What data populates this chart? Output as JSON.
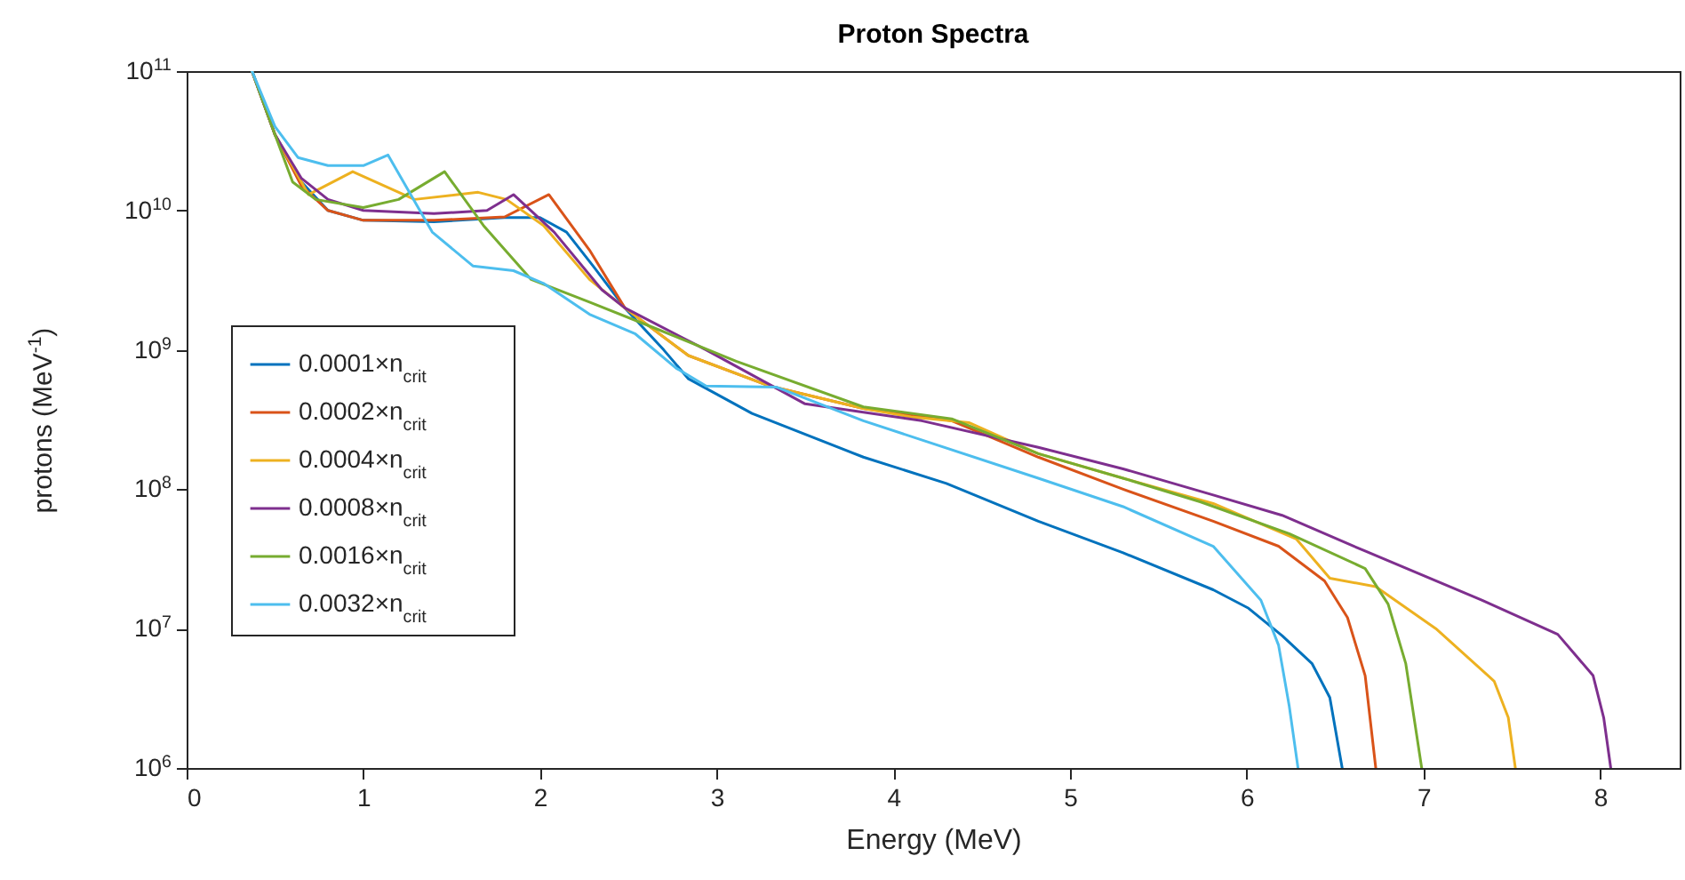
{
  "chart_data": {
    "type": "line",
    "title": "Proton Spectra",
    "xlabel": "Energy (MeV)",
    "ylabel": "protons (MeV$^{-1}$)",
    "log": "y",
    "grid": false,
    "legend": "left",
    "line_style": "solid",
    "xlim": [
      0,
      8.45
    ],
    "xticks": [
      0,
      1,
      2,
      3,
      4,
      5,
      6,
      7,
      8
    ],
    "ylim": [
      1000000.0,
      100000000000.0
    ],
    "yticks": [
      {
        "value": 1000000.0,
        "label": "10$^{6}$"
      },
      {
        "value": 10000000.0,
        "label": "10$^{7}$"
      },
      {
        "value": 100000000.0,
        "label": "10$^{8}$"
      },
      {
        "value": 1000000000.0,
        "label": "10$^{9}$"
      },
      {
        "value": 10000000000.0,
        "label": "10$^{10}$"
      },
      {
        "value": 100000000000.0,
        "label": "10$^{11}$"
      }
    ],
    "series": [
      {
        "name": "0.0001×n$_{crit}$",
        "color": "#0072bd",
        "x": [
          0.37,
          0.5,
          0.65,
          0.8,
          1.0,
          1.4,
          1.8,
          2.0,
          2.15,
          2.3,
          2.48,
          2.7,
          2.84,
          3.2,
          3.83,
          4.3,
          4.82,
          5.3,
          5.81,
          6.01,
          6.2,
          6.37,
          6.47,
          6.54
        ],
        "values": [
          100000000000.0,
          35000000000.0,
          16000000000.0,
          10000000000.0,
          8500000000.0,
          8300000000.0,
          8900000000.0,
          8900000000.0,
          7000000000.0,
          4000000000.0,
          2000000000.0,
          1000000000.0,
          620000000.0,
          350000000.0,
          170000000.0,
          110000000.0,
          59000000.0,
          35000000.0,
          19000000.0,
          14000000.0,
          8900000.0,
          5600000.0,
          3200000.0,
          1000000.0
        ]
      },
      {
        "name": "0.0002×n$_{crit}$",
        "color": "#d95319",
        "x": [
          0.37,
          0.5,
          0.65,
          0.8,
          1.0,
          1.4,
          1.8,
          2.05,
          2.28,
          2.48,
          2.84,
          3.3,
          3.83,
          4.33,
          4.82,
          5.3,
          5.81,
          6.18,
          6.44,
          6.57,
          6.67,
          6.73
        ],
        "values": [
          100000000000.0,
          35000000000.0,
          15000000000.0,
          10000000000.0,
          8500000000.0,
          8500000000.0,
          9000000000.0,
          13000000000.0,
          5200000000.0,
          2000000000.0,
          910000000.0,
          550000000.0,
          380000000.0,
          310000000.0,
          170000000.0,
          100000000.0,
          59000000.0,
          39000000.0,
          22000000.0,
          12000000.0,
          4600000.0,
          1000000.0
        ]
      },
      {
        "name": "0.0004×n$_{crit}$",
        "color": "#edb120",
        "x": [
          0.37,
          0.5,
          0.69,
          0.94,
          1.29,
          1.65,
          1.81,
          2.02,
          2.28,
          2.48,
          2.84,
          3.3,
          3.83,
          4.1,
          4.43,
          4.82,
          5.3,
          5.81,
          6.28,
          6.47,
          6.73,
          7.07,
          7.4,
          7.48,
          7.52
        ],
        "values": [
          100000000000.0,
          35000000000.0,
          13000000000.0,
          19000000000.0,
          12000000000.0,
          13500000000.0,
          12000000000.0,
          7800000000.0,
          3200000000.0,
          2000000000.0,
          910000000.0,
          550000000.0,
          380000000.0,
          330000000.0,
          300000000.0,
          180000000.0,
          120000000.0,
          79000000.0,
          44000000.0,
          23000000.0,
          20000000.0,
          10000000.0,
          4200000.0,
          2300000.0,
          1000000.0
        ]
      },
      {
        "name": "0.0008×n$_{crit}$",
        "color": "#7e2f8e",
        "x": [
          0.37,
          0.5,
          0.65,
          0.8,
          1.0,
          1.4,
          1.7,
          1.85,
          2.08,
          2.35,
          2.48,
          2.94,
          3.5,
          4.16,
          4.82,
          5.3,
          5.81,
          6.2,
          6.67,
          7.33,
          7.76,
          7.96,
          8.02,
          8.06
        ],
        "values": [
          100000000000.0,
          35000000000.0,
          17000000000.0,
          12000000000.0,
          10000000000.0,
          9500000000.0,
          10000000000.0,
          13000000000.0,
          7000000000.0,
          2700000000.0,
          2000000000.0,
          1000000000.0,
          410000000.0,
          310000000.0,
          200000000.0,
          140000000.0,
          91000000.0,
          65000000.0,
          36000000.0,
          16000000.0,
          9100000.0,
          4600000.0,
          2300000.0,
          1000000.0
        ]
      },
      {
        "name": "0.0016×n$_{crit}$",
        "color": "#77ac30",
        "x": [
          0.37,
          0.5,
          0.6,
          0.73,
          1.0,
          1.2,
          1.46,
          1.68,
          1.95,
          2.28,
          2.61,
          3.11,
          3.83,
          4.33,
          4.82,
          5.3,
          5.74,
          6.24,
          6.67,
          6.8,
          6.9,
          6.99
        ],
        "values": [
          100000000000.0,
          35000000000.0,
          16000000000.0,
          12000000000.0,
          10500000000.0,
          12000000000.0,
          19000000000.0,
          7800000000.0,
          3200000000.0,
          2200000000.0,
          1500000000.0,
          830000000.0,
          390000000.0,
          320000000.0,
          180000000.0,
          120000000.0,
          81000000.0,
          48000000.0,
          27000000.0,
          15000000.0,
          5600000.0,
          1000000.0
        ]
      },
      {
        "name": "0.0032×n$_{crit}$",
        "color": "#4dbeee",
        "x": [
          0.37,
          0.5,
          0.63,
          0.8,
          1.0,
          1.14,
          1.39,
          1.62,
          1.85,
          2.02,
          2.28,
          2.54,
          2.77,
          2.94,
          3.34,
          3.83,
          4.82,
          5.3,
          5.81,
          6.08,
          6.18,
          6.24,
          6.29
        ],
        "values": [
          100000000000.0,
          40000000000.0,
          24000000000.0,
          21000000000.0,
          21000000000.0,
          25000000000.0,
          7000000000.0,
          4000000000.0,
          3700000000.0,
          3000000000.0,
          1800000000.0,
          1300000000.0,
          740000000.0,
          550000000.0,
          540000000.0,
          310000000.0,
          120000000.0,
          75000000.0,
          39000000.0,
          16000000.0,
          7600000.0,
          2800000.0,
          1000000.0
        ]
      }
    ]
  }
}
